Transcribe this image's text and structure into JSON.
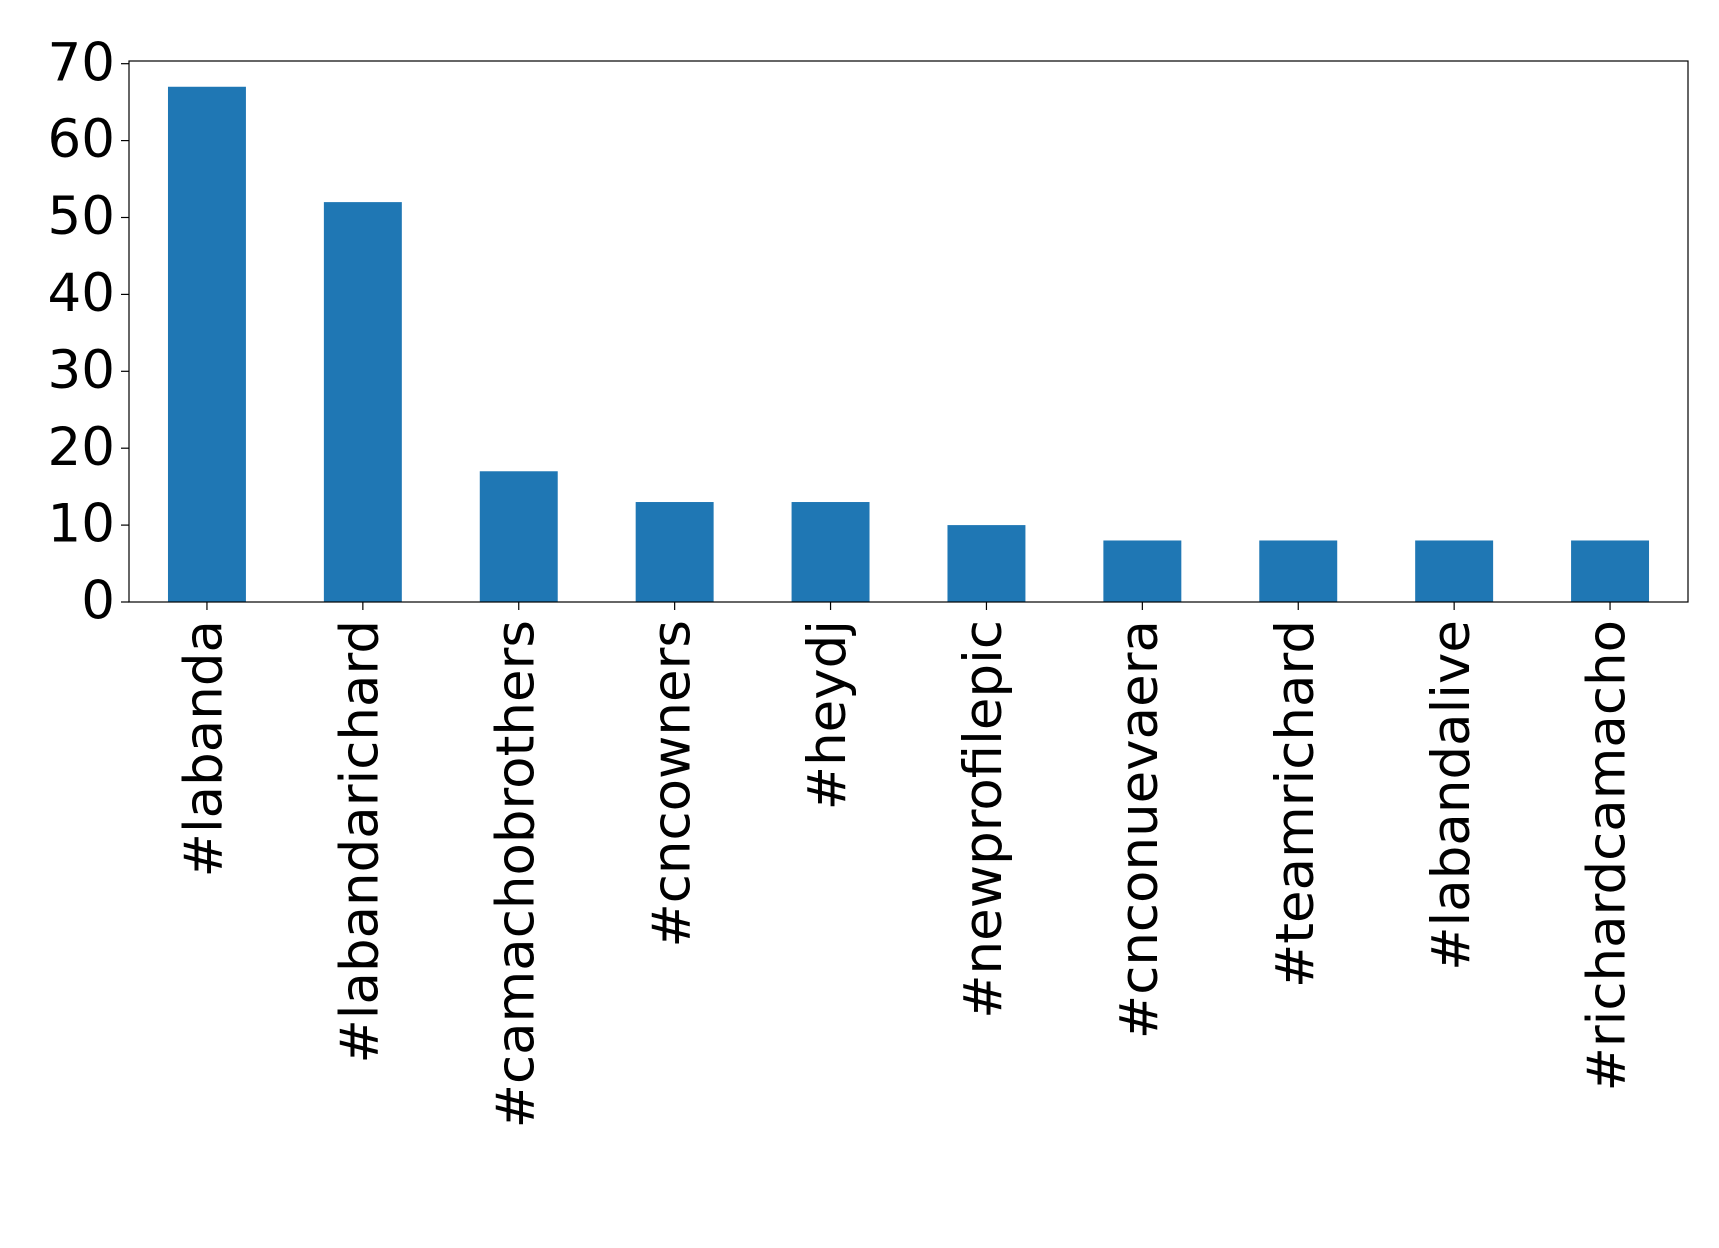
{
  "chart_data": {
    "type": "bar",
    "categories": [
      "#labanda",
      "#labandarichard",
      "#camachobrothers",
      "#cncowners",
      "#heydj",
      "#newprofilepic",
      "#cnconuevaera",
      "#teamrichard",
      "#labandalive",
      "#richardcamacho"
    ],
    "values": [
      67,
      52,
      17,
      13,
      13,
      10,
      8,
      8,
      8,
      8
    ],
    "color": "#1f77b4",
    "ylim": [
      0,
      70.35
    ],
    "yticks": [
      0,
      10,
      20,
      30,
      40,
      50,
      60,
      70
    ],
    "grid": false
  }
}
